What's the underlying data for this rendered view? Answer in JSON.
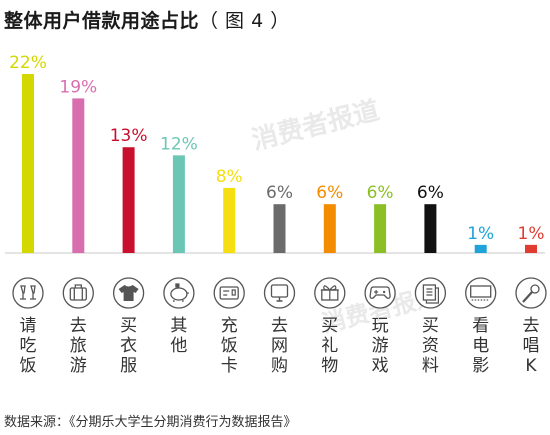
{
  "title": "整体用户借款用途占比",
  "figure_label": "（ 图 4 ）",
  "watermark": "消费者报道",
  "source": "数据来源：《分期乐大学生分期消费行为数据报告》",
  "chart_data": {
    "type": "bar",
    "categories": [
      "请吃饭",
      "去旅游",
      "买衣服",
      "其他",
      "充饭卡",
      "去网购",
      "买礼物",
      "玩游戏",
      "买资料",
      "看电影",
      "去唱K"
    ],
    "values": [
      22,
      19,
      13,
      12,
      8,
      6,
      6,
      6,
      6,
      1,
      1
    ],
    "value_labels": [
      "22%",
      "19%",
      "13%",
      "12%",
      "8%",
      "6%",
      "6%",
      "6%",
      "6%",
      "1%",
      "1%"
    ],
    "colors": [
      "#d4d800",
      "#d96eaf",
      "#c8102e",
      "#6cc6b6",
      "#f5de12",
      "#6b6b6b",
      "#f28c00",
      "#8cbf26",
      "#111111",
      "#1fa3d8",
      "#e03c31"
    ],
    "icons": [
      "toast-icon",
      "luggage-icon",
      "shirt-icon",
      "piggy-bank-icon",
      "meal-card-icon",
      "computer-icon",
      "gift-icon",
      "gamepad-icon",
      "documents-icon",
      "cinema-screen-icon",
      "microphone-icon"
    ],
    "title": "整体用户借款用途占比",
    "xlabel": "",
    "ylabel": "",
    "ylim": [
      0,
      22
    ],
    "grid": false,
    "legend": "none"
  }
}
